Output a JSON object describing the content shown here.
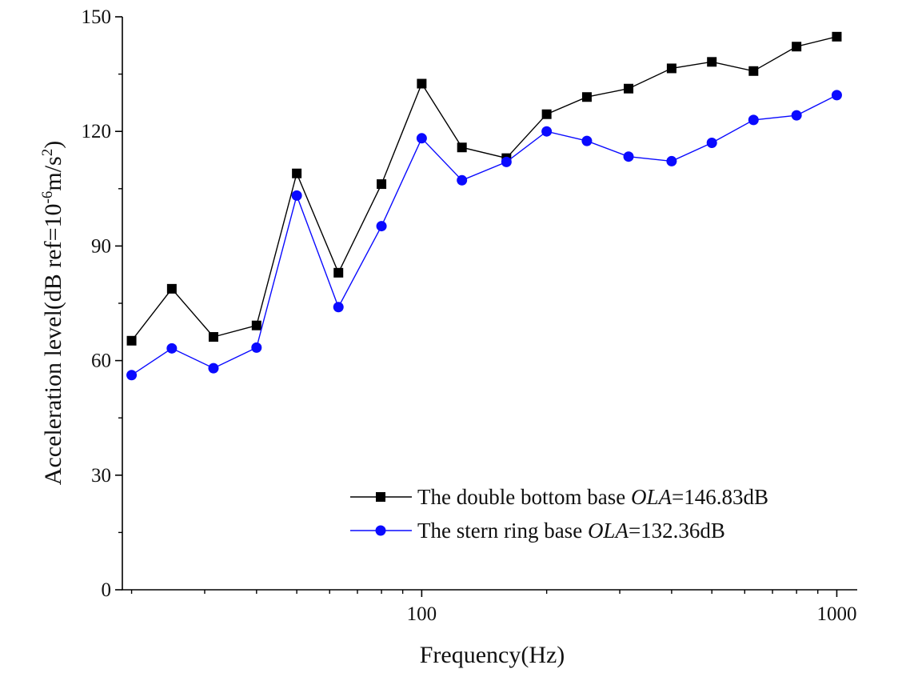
{
  "chart_data": {
    "type": "line",
    "xlabel": "Frequency(Hz)",
    "ylabel": "Acceleration level(dB ref=10",
    "ylabel_sup1": "-6",
    "ylabel_mid": "m/s",
    "ylabel_sup2": "2",
    "ylabel_end": ")",
    "x_scale": "log",
    "xlim": [
      19,
      1120
    ],
    "ylim": [
      0,
      150
    ],
    "yticks": [
      0,
      30,
      60,
      90,
      120,
      150
    ],
    "ytick_labels": [
      "0",
      "30",
      "60",
      "90",
      "120",
      "150"
    ],
    "xticks": [
      100,
      1000
    ],
    "xtick_labels": [
      "100",
      "1000"
    ],
    "x_minor_ticks": [
      20,
      30,
      40,
      50,
      60,
      70,
      80,
      90,
      200,
      300,
      400,
      500,
      600,
      700,
      800,
      900
    ],
    "grid": false,
    "legend_position": "bottom-right",
    "x": [
      20,
      25,
      31.5,
      40,
      50,
      63,
      80,
      100,
      125,
      160,
      200,
      250,
      315,
      400,
      500,
      630,
      800,
      1000
    ],
    "series": [
      {
        "name": "The double bottom base ",
        "name_italic": "OLA",
        "name_suffix": "=146.83dB",
        "color": "#000000",
        "marker": "square",
        "values": [
          65.2,
          78.8,
          66.2,
          69.2,
          109.0,
          83.0,
          106.2,
          132.5,
          115.8,
          113.0,
          124.5,
          129.0,
          131.2,
          136.5,
          138.2,
          135.8,
          142.2,
          144.8
        ]
      },
      {
        "name": "The stern ring base  ",
        "name_italic": "OLA",
        "name_suffix": "=132.36dB",
        "color": "#0a0aff",
        "marker": "circle",
        "values": [
          56.2,
          63.2,
          58.0,
          63.4,
          103.2,
          74.0,
          95.2,
          118.2,
          107.2,
          112.0,
          120.0,
          117.5,
          113.4,
          112.2,
          117.0,
          123.0,
          124.2,
          129.5
        ]
      }
    ]
  }
}
